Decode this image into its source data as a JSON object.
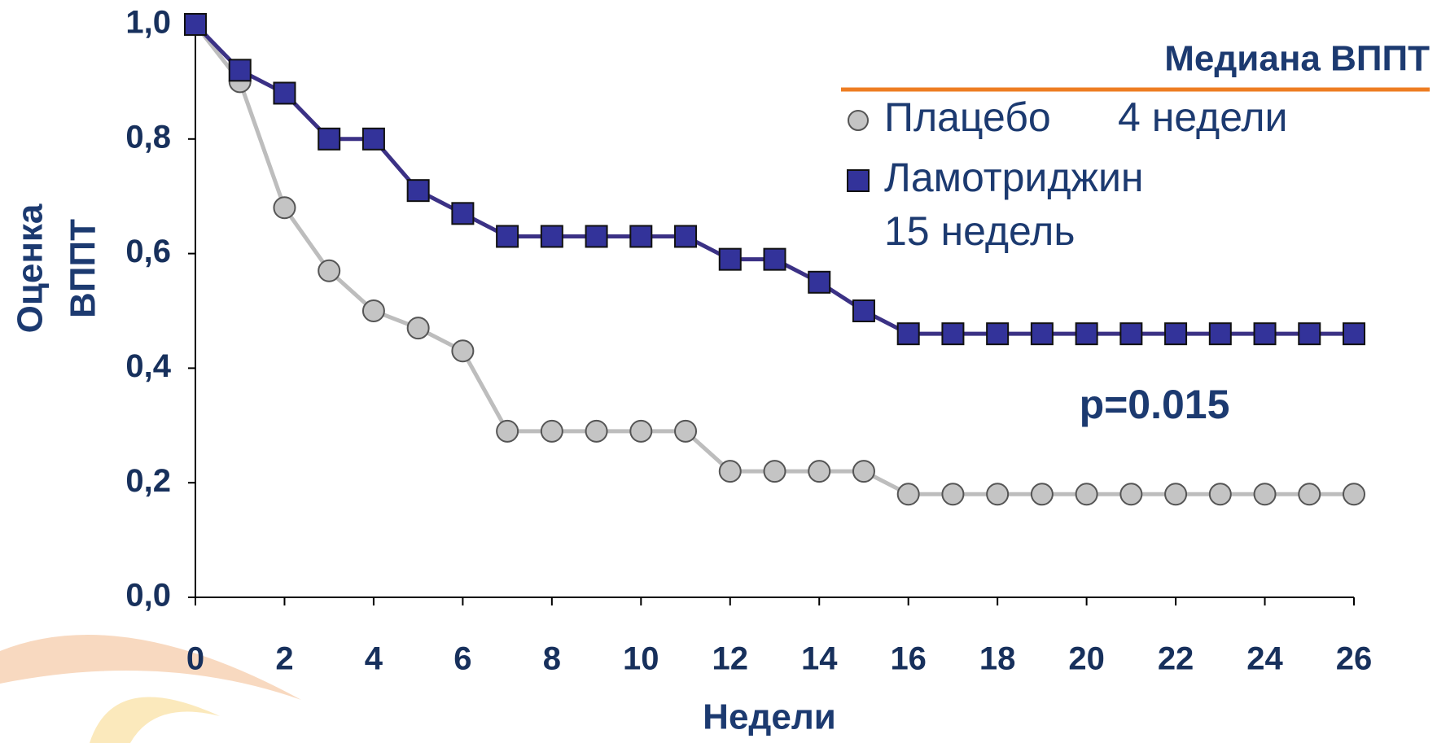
{
  "chart_data": {
    "type": "line",
    "x": [
      0,
      1,
      2,
      3,
      4,
      5,
      6,
      7,
      8,
      9,
      10,
      11,
      12,
      13,
      14,
      15,
      16,
      17,
      18,
      19,
      20,
      21,
      22,
      23,
      24,
      25,
      26
    ],
    "series": [
      {
        "name": "Плацебо",
        "median": "4 недели",
        "color": "#c4c4c4",
        "marker": "circle",
        "values": [
          1.0,
          0.9,
          0.68,
          0.57,
          0.5,
          0.47,
          0.43,
          0.29,
          0.29,
          0.29,
          0.29,
          0.29,
          0.22,
          0.22,
          0.22,
          0.22,
          0.18,
          0.18,
          0.18,
          0.18,
          0.18,
          0.18,
          0.18,
          0.18,
          0.18,
          0.18,
          0.18
        ]
      },
      {
        "name": "Ламотриджин",
        "median": "15 недель",
        "color": "#33339a",
        "marker": "square",
        "values": [
          1.0,
          0.92,
          0.88,
          0.8,
          0.8,
          0.71,
          0.67,
          0.63,
          0.63,
          0.63,
          0.63,
          0.63,
          0.59,
          0.59,
          0.55,
          0.5,
          0.46,
          0.46,
          0.46,
          0.46,
          0.46,
          0.46,
          0.46,
          0.46,
          0.46,
          0.46,
          0.46
        ]
      }
    ],
    "legend_title": "Медиана ВППТ",
    "annotation": "p=0.015",
    "x_label": "Недели",
    "y_label": [
      "Оценка",
      "ВППТ"
    ],
    "xlim": [
      0,
      26
    ],
    "xticks": [
      0,
      2,
      4,
      6,
      8,
      10,
      12,
      14,
      16,
      18,
      20,
      22,
      24,
      26
    ],
    "ylim": [
      0,
      1
    ],
    "yticks": [
      {
        "value": 0,
        "label": "0,0"
      },
      {
        "value": 0.2,
        "label": "0,2"
      },
      {
        "value": 0.4,
        "label": "0,4"
      },
      {
        "value": 0.6,
        "label": "0,6"
      },
      {
        "value": 0.8,
        "label": "0,8"
      },
      {
        "value": 1,
        "label": "1,0"
      }
    ]
  }
}
